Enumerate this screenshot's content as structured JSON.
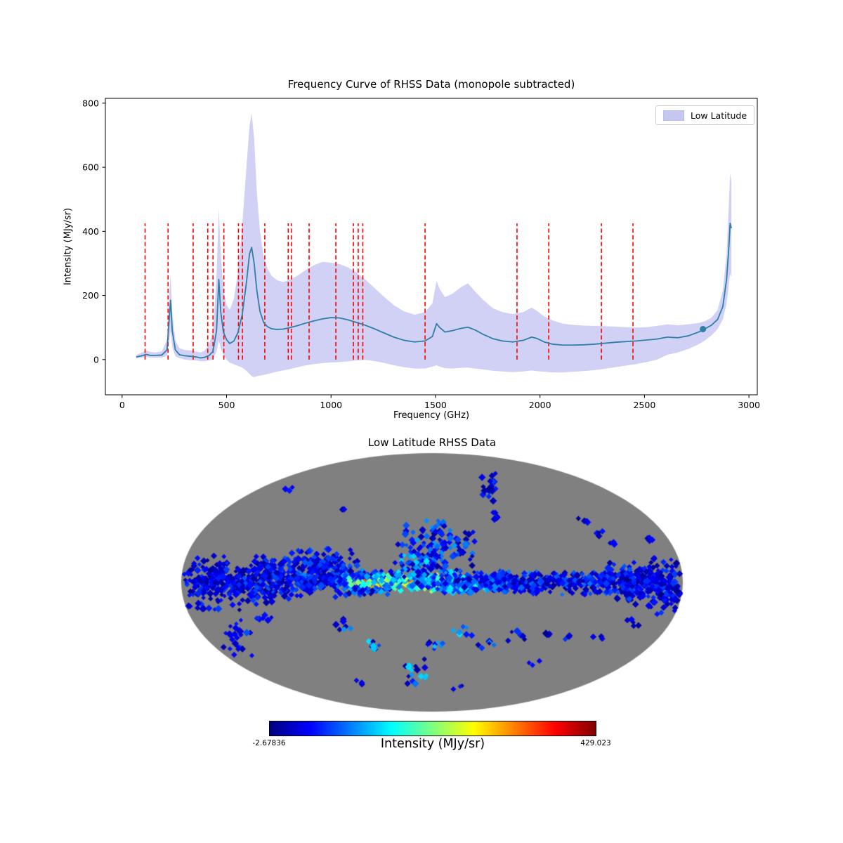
{
  "figure": {
    "background": "#ffffff"
  },
  "chart_data": [
    {
      "type": "line",
      "title": "Frequency Curve of RHSS Data (monopole subtracted)",
      "xlabel": "Frequency (GHz)",
      "ylabel": "Intensity (MJy/sr)",
      "legend": {
        "label": "Low Latitude",
        "position": "upper right"
      },
      "grid": false,
      "xlim": [
        -80,
        3040
      ],
      "ylim": [
        -110,
        815
      ],
      "xticks": [
        0,
        500,
        1000,
        1500,
        2000,
        2500,
        3000
      ],
      "yticks": [
        0,
        200,
        400,
        600,
        800
      ],
      "line_color": "#2e7ea6",
      "band_color": "#9999e8",
      "band_opacity": 0.45,
      "vline_color": "#ff0000",
      "vline_ymin": 0,
      "vline_ymax": 425,
      "vlines": [
        110,
        220,
        340,
        410,
        435,
        487,
        557,
        576,
        683,
        795,
        810,
        895,
        1023,
        1107,
        1130,
        1152,
        1450,
        1890,
        2042,
        2294,
        2445
      ],
      "marker": {
        "x": 2780,
        "y": 95
      },
      "series": {
        "x": [
          68,
          95,
          115,
          135,
          160,
          190,
          215,
          228,
          232,
          240,
          255,
          275,
          300,
          330,
          355,
          375,
          395,
          415,
          435,
          452,
          463,
          472,
          485,
          500,
          515,
          535,
          555,
          575,
          595,
          610,
          620,
          632,
          645,
          660,
          678,
          695,
          715,
          740,
          770,
          800,
          840,
          880,
          920,
          960,
          1000,
          1040,
          1080,
          1120,
          1160,
          1200,
          1250,
          1300,
          1350,
          1400,
          1450,
          1485,
          1505,
          1520,
          1545,
          1580,
          1620,
          1655,
          1690,
          1730,
          1775,
          1820,
          1870,
          1920,
          1960,
          1985,
          2020,
          2060,
          2110,
          2160,
          2210,
          2260,
          2310,
          2360,
          2410,
          2460,
          2510,
          2560,
          2610,
          2660,
          2710,
          2760,
          2790,
          2820,
          2850,
          2875,
          2893,
          2903,
          2910,
          2916
        ],
        "mean": [
          8,
          12,
          16,
          13,
          13,
          14,
          30,
          150,
          185,
          90,
          30,
          15,
          12,
          10,
          8,
          5,
          7,
          12,
          25,
          90,
          250,
          150,
          85,
          62,
          50,
          58,
          85,
          140,
          240,
          330,
          350,
          300,
          215,
          150,
          115,
          103,
          96,
          94,
          95,
          99,
          106,
          114,
          121,
          127,
          131,
          130,
          124,
          116,
          108,
          98,
          84,
          70,
          60,
          55,
          58,
          72,
          112,
          100,
          86,
          90,
          97,
          101,
          92,
          78,
          65,
          58,
          55,
          60,
          70,
          66,
          55,
          48,
          45,
          45,
          46,
          48,
          51,
          54,
          56,
          58,
          61,
          64,
          70,
          68,
          74,
          86,
          96,
          107,
          125,
          165,
          250,
          340,
          425,
          410
        ],
        "upper": [
          14,
          22,
          28,
          24,
          22,
          26,
          60,
          230,
          265,
          150,
          60,
          35,
          30,
          28,
          25,
          22,
          28,
          45,
          90,
          260,
          470,
          330,
          215,
          170,
          155,
          190,
          275,
          420,
          600,
          730,
          768,
          690,
          520,
          400,
          320,
          285,
          262,
          248,
          242,
          248,
          262,
          280,
          295,
          305,
          302,
          298,
          288,
          272,
          252,
          228,
          198,
          170,
          150,
          140,
          148,
          175,
          245,
          220,
          195,
          205,
          225,
          238,
          212,
          185,
          160,
          148,
          142,
          148,
          162,
          152,
          135,
          122,
          112,
          108,
          106,
          105,
          104,
          103,
          101,
          100,
          101,
          105,
          110,
          107,
          110,
          114,
          120,
          130,
          155,
          215,
          330,
          470,
          580,
          555
        ],
        "lower": [
          4,
          6,
          8,
          6,
          6,
          6,
          12,
          70,
          90,
          40,
          10,
          4,
          0,
          -2,
          -3,
          -5,
          -5,
          -3,
          0,
          25,
          60,
          35,
          15,
          0,
          -10,
          -15,
          -20,
          -25,
          -35,
          -45,
          -52,
          -55,
          -52,
          -50,
          -48,
          -45,
          -42,
          -38,
          -34,
          -30,
          -24,
          -18,
          -14,
          -11,
          -9,
          -8,
          -6,
          -3,
          -1,
          -4,
          -10,
          -18,
          -24,
          -28,
          -28,
          -22,
          -18,
          -22,
          -27,
          -28,
          -26,
          -25,
          -28,
          -31,
          -35,
          -37,
          -39,
          -37,
          -34,
          -36,
          -38,
          -40,
          -40,
          -38,
          -36,
          -33,
          -29,
          -24,
          -19,
          -14,
          -8,
          0,
          15,
          22,
          33,
          48,
          60,
          75,
          95,
          125,
          175,
          230,
          268,
          258
        ]
      }
    },
    {
      "type": "heatmap",
      "projection": "mollweide",
      "title": "Low Latitude RHSS Data",
      "background_color": "#808080",
      "colormap": "jet",
      "colorbar": {
        "label": "Intensity (MJy/sr)",
        "vmin": -2.67836,
        "vmax": 429.023,
        "vmin_label": "-2.67836",
        "vmax_label": "429.023"
      },
      "seed": 1337,
      "pixel_half_size": 4,
      "clusters": [
        {
          "u": -0.85,
          "v": 0.02,
          "du": 0.15,
          "dv": 0.15,
          "n": 280,
          "lo": 2,
          "hi": 80
        },
        {
          "u": -0.6,
          "v": 0.0,
          "du": 0.14,
          "dv": 0.09,
          "n": 210,
          "lo": 2,
          "hi": 90
        },
        {
          "u": -0.42,
          "v": -0.04,
          "du": 0.1,
          "dv": 0.11,
          "n": 160,
          "lo": 5,
          "hi": 110
        },
        {
          "u": -0.25,
          "v": 0.0,
          "du": 0.09,
          "dv": 0.07,
          "n": 140,
          "lo": 10,
          "hi": 140
        },
        {
          "u": -0.1,
          "v": 0.0,
          "du": 0.14,
          "dv": 0.018,
          "n": 120,
          "lo": 200,
          "hi": 400
        },
        {
          "u": -0.08,
          "v": 0.0,
          "du": 0.16,
          "dv": 0.05,
          "n": 170,
          "lo": 60,
          "hi": 230
        },
        {
          "u": 0.08,
          "v": 0.0,
          "du": 0.1,
          "dv": 0.06,
          "n": 130,
          "lo": 30,
          "hi": 180
        },
        {
          "u": 0.25,
          "v": 0.0,
          "du": 0.1,
          "dv": 0.06,
          "n": 120,
          "lo": 10,
          "hi": 120
        },
        {
          "u": 0.42,
          "v": 0.0,
          "du": 0.1,
          "dv": 0.06,
          "n": 110,
          "lo": 5,
          "hi": 100
        },
        {
          "u": 0.6,
          "v": 0.0,
          "du": 0.1,
          "dv": 0.07,
          "n": 120,
          "lo": 5,
          "hi": 100
        },
        {
          "u": 0.78,
          "v": 0.0,
          "du": 0.1,
          "dv": 0.1,
          "n": 150,
          "lo": 2,
          "hi": 90
        },
        {
          "u": 0.92,
          "v": 0.02,
          "du": 0.09,
          "dv": 0.15,
          "n": 170,
          "lo": 2,
          "hi": 80
        },
        {
          "u": 0.02,
          "v": -0.28,
          "du": 0.1,
          "dv": 0.14,
          "n": 130,
          "lo": 5,
          "hi": 120
        },
        {
          "u": -0.05,
          "v": -0.12,
          "du": 0.07,
          "dv": 0.08,
          "n": 60,
          "lo": 10,
          "hi": 150
        },
        {
          "u": -0.45,
          "v": -0.18,
          "du": 0.1,
          "dv": 0.07,
          "n": 70,
          "lo": 5,
          "hi": 90
        },
        {
          "u": -0.62,
          "v": -0.12,
          "du": 0.06,
          "dv": 0.05,
          "n": 40,
          "lo": 5,
          "hi": 80
        },
        {
          "u": 0.23,
          "v": -0.75,
          "du": 0.025,
          "dv": 0.09,
          "n": 22,
          "lo": 5,
          "hi": 90
        },
        {
          "u": 0.25,
          "v": -0.5,
          "du": 0.02,
          "dv": 0.03,
          "n": 6,
          "lo": 5,
          "hi": 70
        },
        {
          "u": 0.6,
          "v": -0.48,
          "du": 0.02,
          "dv": 0.02,
          "n": 4,
          "lo": 5,
          "hi": 60
        },
        {
          "u": 0.67,
          "v": -0.38,
          "du": 0.02,
          "dv": 0.02,
          "n": 4,
          "lo": 5,
          "hi": 60
        },
        {
          "u": 0.72,
          "v": -0.3,
          "du": 0.015,
          "dv": 0.015,
          "n": 3,
          "lo": 5,
          "hi": 60
        },
        {
          "u": -0.57,
          "v": -0.72,
          "du": 0.015,
          "dv": 0.015,
          "n": 3,
          "lo": 5,
          "hi": 60
        },
        {
          "u": -0.35,
          "v": -0.55,
          "du": 0.015,
          "dv": 0.015,
          "n": 2,
          "lo": 5,
          "hi": 50
        },
        {
          "u": 0.88,
          "v": -0.33,
          "du": 0.02,
          "dv": 0.02,
          "n": 4,
          "lo": 5,
          "hi": 60
        },
        {
          "u": -0.78,
          "v": 0.42,
          "du": 0.05,
          "dv": 0.11,
          "n": 26,
          "lo": 5,
          "hi": 90
        },
        {
          "u": -0.68,
          "v": 0.3,
          "du": 0.03,
          "dv": 0.04,
          "n": 8,
          "lo": 5,
          "hi": 70
        },
        {
          "u": -0.35,
          "v": 0.35,
          "du": 0.03,
          "dv": 0.05,
          "n": 8,
          "lo": 5,
          "hi": 120
        },
        {
          "u": -0.22,
          "v": 0.5,
          "du": 0.03,
          "dv": 0.04,
          "n": 8,
          "lo": 5,
          "hi": 150
        },
        {
          "u": -0.07,
          "v": 0.68,
          "du": 0.05,
          "dv": 0.08,
          "n": 18,
          "lo": 5,
          "hi": 150
        },
        {
          "u": 0.02,
          "v": 0.48,
          "du": 0.03,
          "dv": 0.04,
          "n": 8,
          "lo": 10,
          "hi": 160
        },
        {
          "u": 0.12,
          "v": 0.38,
          "du": 0.03,
          "dv": 0.03,
          "n": 7,
          "lo": 10,
          "hi": 150
        },
        {
          "u": 0.22,
          "v": 0.48,
          "du": 0.03,
          "dv": 0.03,
          "n": 6,
          "lo": 5,
          "hi": 120
        },
        {
          "u": 0.33,
          "v": 0.42,
          "du": 0.03,
          "dv": 0.03,
          "n": 6,
          "lo": 5,
          "hi": 100
        },
        {
          "u": 0.45,
          "v": 0.4,
          "du": 0.02,
          "dv": 0.02,
          "n": 4,
          "lo": 5,
          "hi": 80
        },
        {
          "u": 0.55,
          "v": 0.42,
          "du": 0.02,
          "dv": 0.02,
          "n": 4,
          "lo": 5,
          "hi": 80
        },
        {
          "u": 0.66,
          "v": 0.42,
          "du": 0.02,
          "dv": 0.02,
          "n": 4,
          "lo": 5,
          "hi": 70
        },
        {
          "u": 0.8,
          "v": 0.3,
          "du": 0.02,
          "dv": 0.03,
          "n": 5,
          "lo": 5,
          "hi": 70
        },
        {
          "u": 0.1,
          "v": 0.8,
          "du": 0.02,
          "dv": 0.02,
          "n": 3,
          "lo": 5,
          "hi": 60
        },
        {
          "u": -0.28,
          "v": 0.78,
          "du": 0.02,
          "dv": 0.02,
          "n": 3,
          "lo": 5,
          "hi": 60
        },
        {
          "u": 0.4,
          "v": 0.62,
          "du": 0.02,
          "dv": 0.02,
          "n": 3,
          "lo": 5,
          "hi": 60
        }
      ]
    }
  ]
}
